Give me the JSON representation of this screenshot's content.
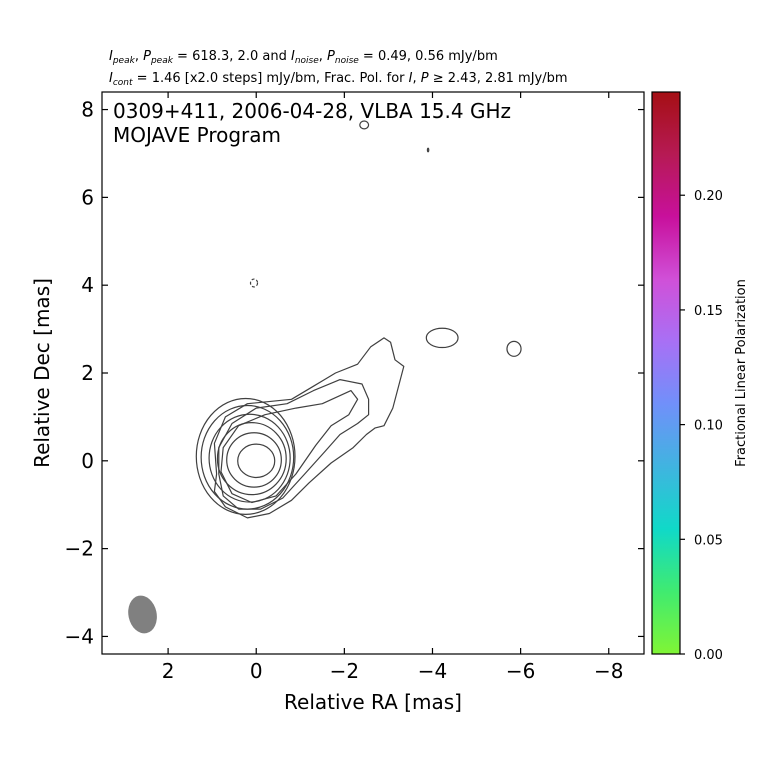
{
  "header": {
    "line1": {
      "i_sym": "I",
      "i_sub": "peak",
      "p_sym": "P",
      "p_sub": "peak",
      "peak_values": " = 618.3, 2.0 and ",
      "in_sym": "I",
      "in_sub": "noise",
      "pn_sym": "P",
      "pn_sub": "noise",
      "noise_values": " = 0.49, 0.56 mJy/bm"
    },
    "line2": {
      "i_sym": "I",
      "i_sub": "cont",
      "cont_text": " = 1.46 [x2.0 steps] mJy/bm, Frac. Pol. for ",
      "i2_sym": "I",
      "p2_sym": "P",
      "threshold_text": " ≥ 2.43, 2.81 mJy/bm"
    }
  },
  "chart_data": {
    "type": "contour",
    "annotation_line1": "0309+411, 2006-04-28, VLBA 15.4 GHz",
    "annotation_line2": "MOJAVE Program",
    "xlabel": "Relative RA [mas]",
    "ylabel": "Relative Dec [mas]",
    "xlim": [
      3.5,
      -8.8
    ],
    "ylim": [
      -4.4,
      8.4
    ],
    "xticks": [
      2,
      0,
      -2,
      -4,
      -6,
      -8
    ],
    "xtick_labels": [
      "2",
      "0",
      "−2",
      "−4",
      "−6",
      "−8"
    ],
    "yticks": [
      -4,
      -2,
      0,
      2,
      4,
      6,
      8
    ],
    "ytick_labels": [
      "−4",
      "−2",
      "0",
      "2",
      "4",
      "6",
      "8"
    ],
    "contour_base_mJy_per_beam": 1.46,
    "contour_step_factor": 2.0,
    "peak_position": [
      0.0,
      0.0
    ],
    "core_contours": [
      {
        "cx": 0.0,
        "cy": 0.0,
        "rx": 0.42,
        "ry": 0.38
      },
      {
        "cx": 0.05,
        "cy": 0.02,
        "rx": 0.62,
        "ry": 0.62
      },
      {
        "cx": 0.1,
        "cy": 0.05,
        "rx": 0.78,
        "ry": 0.82
      },
      {
        "cx": 0.15,
        "cy": 0.06,
        "rx": 0.92,
        "ry": 1.0
      },
      {
        "cx": 0.2,
        "cy": 0.08,
        "rx": 1.05,
        "ry": 1.18
      },
      {
        "cx": 0.24,
        "cy": 0.1,
        "rx": 1.12,
        "ry": 1.32
      }
    ],
    "jet_contours": [
      {
        "points": [
          [
            0.9,
            -0.3
          ],
          [
            0.95,
            0.4
          ],
          [
            0.7,
            1.0
          ],
          [
            0.2,
            1.3
          ],
          [
            -0.8,
            1.4
          ],
          [
            -1.3,
            1.7
          ],
          [
            -1.8,
            2.0
          ],
          [
            -2.3,
            2.2
          ],
          [
            -2.6,
            2.6
          ],
          [
            -2.9,
            2.8
          ],
          [
            -3.05,
            2.7
          ],
          [
            -3.15,
            2.3
          ],
          [
            -3.35,
            2.15
          ],
          [
            -3.1,
            1.2
          ],
          [
            -2.9,
            0.8
          ],
          [
            -2.7,
            0.75
          ],
          [
            -2.5,
            0.6
          ],
          [
            -2.2,
            0.3
          ],
          [
            -1.7,
            -0.05
          ],
          [
            -1.2,
            -0.5
          ],
          [
            -0.8,
            -0.9
          ],
          [
            -0.3,
            -1.2
          ],
          [
            0.2,
            -1.3
          ],
          [
            0.7,
            -1.05
          ],
          [
            0.95,
            -0.7
          ]
        ]
      },
      {
        "points": [
          [
            0.85,
            -0.3
          ],
          [
            0.85,
            0.3
          ],
          [
            0.55,
            0.85
          ],
          [
            0.0,
            1.2
          ],
          [
            -0.7,
            1.3
          ],
          [
            -1.3,
            1.6
          ],
          [
            -1.9,
            1.85
          ],
          [
            -2.4,
            1.75
          ],
          [
            -2.55,
            1.4
          ],
          [
            -2.55,
            1.05
          ],
          [
            -2.3,
            0.85
          ],
          [
            -1.9,
            0.6
          ],
          [
            -1.55,
            0.2
          ],
          [
            -1.1,
            -0.3
          ],
          [
            -0.6,
            -0.85
          ],
          [
            -0.1,
            -1.1
          ],
          [
            0.4,
            -1.1
          ],
          [
            0.75,
            -0.8
          ]
        ]
      },
      {
        "points": [
          [
            0.8,
            -0.25
          ],
          [
            0.75,
            0.3
          ],
          [
            0.4,
            0.8
          ],
          [
            -0.2,
            1.05
          ],
          [
            -0.9,
            1.2
          ],
          [
            -1.5,
            1.3
          ],
          [
            -2.15,
            1.6
          ],
          [
            -2.3,
            1.4
          ],
          [
            -2.1,
            1.05
          ],
          [
            -1.7,
            0.8
          ],
          [
            -1.35,
            0.35
          ],
          [
            -0.9,
            -0.3
          ],
          [
            -0.45,
            -0.8
          ],
          [
            0.1,
            -0.95
          ],
          [
            0.55,
            -0.75
          ]
        ]
      }
    ],
    "isolated_contours": [
      {
        "cx": -2.45,
        "cy": 7.65,
        "rx": 0.1,
        "ry": 0.09,
        "dashed": false
      },
      {
        "cx": -3.9,
        "cy": 7.08,
        "rx": 0.015,
        "ry": 0.04,
        "dashed": false
      },
      {
        "cx": 0.05,
        "cy": 4.05,
        "rx": 0.08,
        "ry": 0.09,
        "dashed": true
      },
      {
        "cx": -4.22,
        "cy": 2.8,
        "rx": 0.36,
        "ry": 0.22,
        "dashed": false
      },
      {
        "cx": -5.85,
        "cy": 2.55,
        "rx": 0.16,
        "ry": 0.17,
        "dashed": false
      }
    ],
    "beam": {
      "cx": 2.58,
      "cy": -3.5,
      "major": 0.87,
      "minor": 0.64,
      "pa_deg": -12,
      "color": "#808080"
    },
    "contour_color": "#404040",
    "colorbar": {
      "label": "Fractional Linear Polarization",
      "range": [
        0.0,
        0.245
      ],
      "ticks": [
        0.0,
        0.05,
        0.1,
        0.15,
        0.2
      ],
      "tick_labels": [
        "0.00",
        "0.05",
        "0.10",
        "0.15",
        "0.20"
      ],
      "colors": [
        "#80f535",
        "#40eb70",
        "#10d9c8",
        "#40b4e0",
        "#7090fa",
        "#a870f5",
        "#d050d8",
        "#c8109c",
        "#b61a54",
        "#a50f14"
      ]
    }
  }
}
